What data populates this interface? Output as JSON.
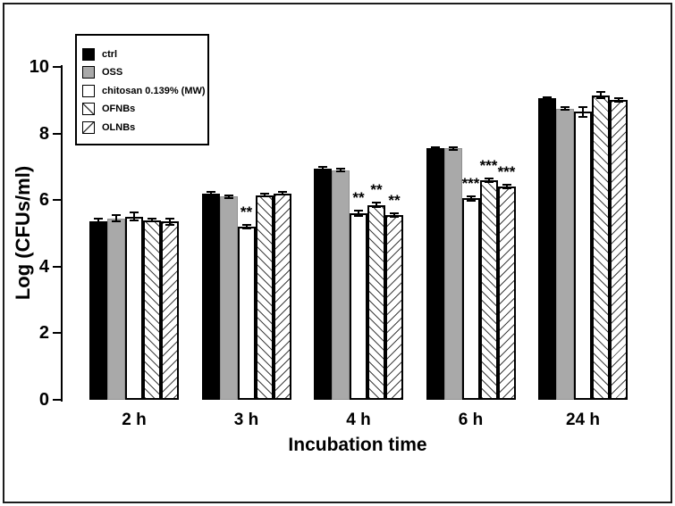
{
  "figure": {
    "background": "#ffffff",
    "frame_color": "#1c1c1c"
  },
  "legend": {
    "position": "top-left",
    "items": [
      {
        "label": "ctrl",
        "swatch": "solid-black"
      },
      {
        "label": "OSS",
        "swatch": "solid-gray"
      },
      {
        "label": "chitosan 0.139% (MW)",
        "swatch": "white"
      },
      {
        "label": "OFNBs",
        "swatch": "hatch-fwd"
      },
      {
        "label": "OLNBs",
        "swatch": "hatch-back"
      }
    ]
  },
  "chart_data": {
    "type": "bar",
    "title": "",
    "xlabel": "Incubation time",
    "ylabel": "Log (CFUs/ml)",
    "ylim": [
      0,
      10
    ],
    "yticks": [
      0,
      2,
      4,
      6,
      8,
      10
    ],
    "grid": false,
    "legend_position": "top-left",
    "categories": [
      "2 h",
      "3 h",
      "4 h",
      "6 h",
      "24 h"
    ],
    "series": [
      {
        "name": "ctrl",
        "pattern": "solid-black",
        "color": "#000000",
        "values": [
          5.35,
          6.2,
          6.95,
          7.55,
          9.05
        ],
        "errors": [
          0.08,
          0.04,
          0.05,
          0.04,
          0.05
        ],
        "significance": [
          "",
          "",
          "",
          "",
          ""
        ]
      },
      {
        "name": "OSS",
        "pattern": "solid-gray",
        "color": "#a9a9a9",
        "values": [
          5.45,
          6.1,
          6.9,
          7.55,
          8.75
        ],
        "errors": [
          0.1,
          0.05,
          0.04,
          0.04,
          0.05
        ],
        "significance": [
          "",
          "",
          "",
          "",
          ""
        ]
      },
      {
        "name": "chitosan 0.139% (MW)",
        "pattern": "white",
        "color": "#ffffff",
        "values": [
          5.5,
          5.2,
          5.6,
          6.05,
          8.65
        ],
        "errors": [
          0.12,
          0.05,
          0.08,
          0.07,
          0.15
        ],
        "significance": [
          "",
          "**",
          "**",
          "***",
          ""
        ]
      },
      {
        "name": "OFNBs",
        "pattern": "hatch-fwd",
        "color": "#3f3f3f",
        "values": [
          5.4,
          6.15,
          5.85,
          6.6,
          9.15
        ],
        "errors": [
          0.05,
          0.04,
          0.07,
          0.05,
          0.1
        ],
        "significance": [
          "",
          "",
          "**",
          "***",
          ""
        ]
      },
      {
        "name": "OLNBs",
        "pattern": "hatch-back",
        "color": "#3f3f3f",
        "values": [
          5.35,
          6.2,
          5.55,
          6.4,
          9.0
        ],
        "errors": [
          0.1,
          0.04,
          0.05,
          0.05,
          0.05
        ],
        "significance": [
          "",
          "",
          "**",
          "***",
          ""
        ]
      }
    ]
  }
}
